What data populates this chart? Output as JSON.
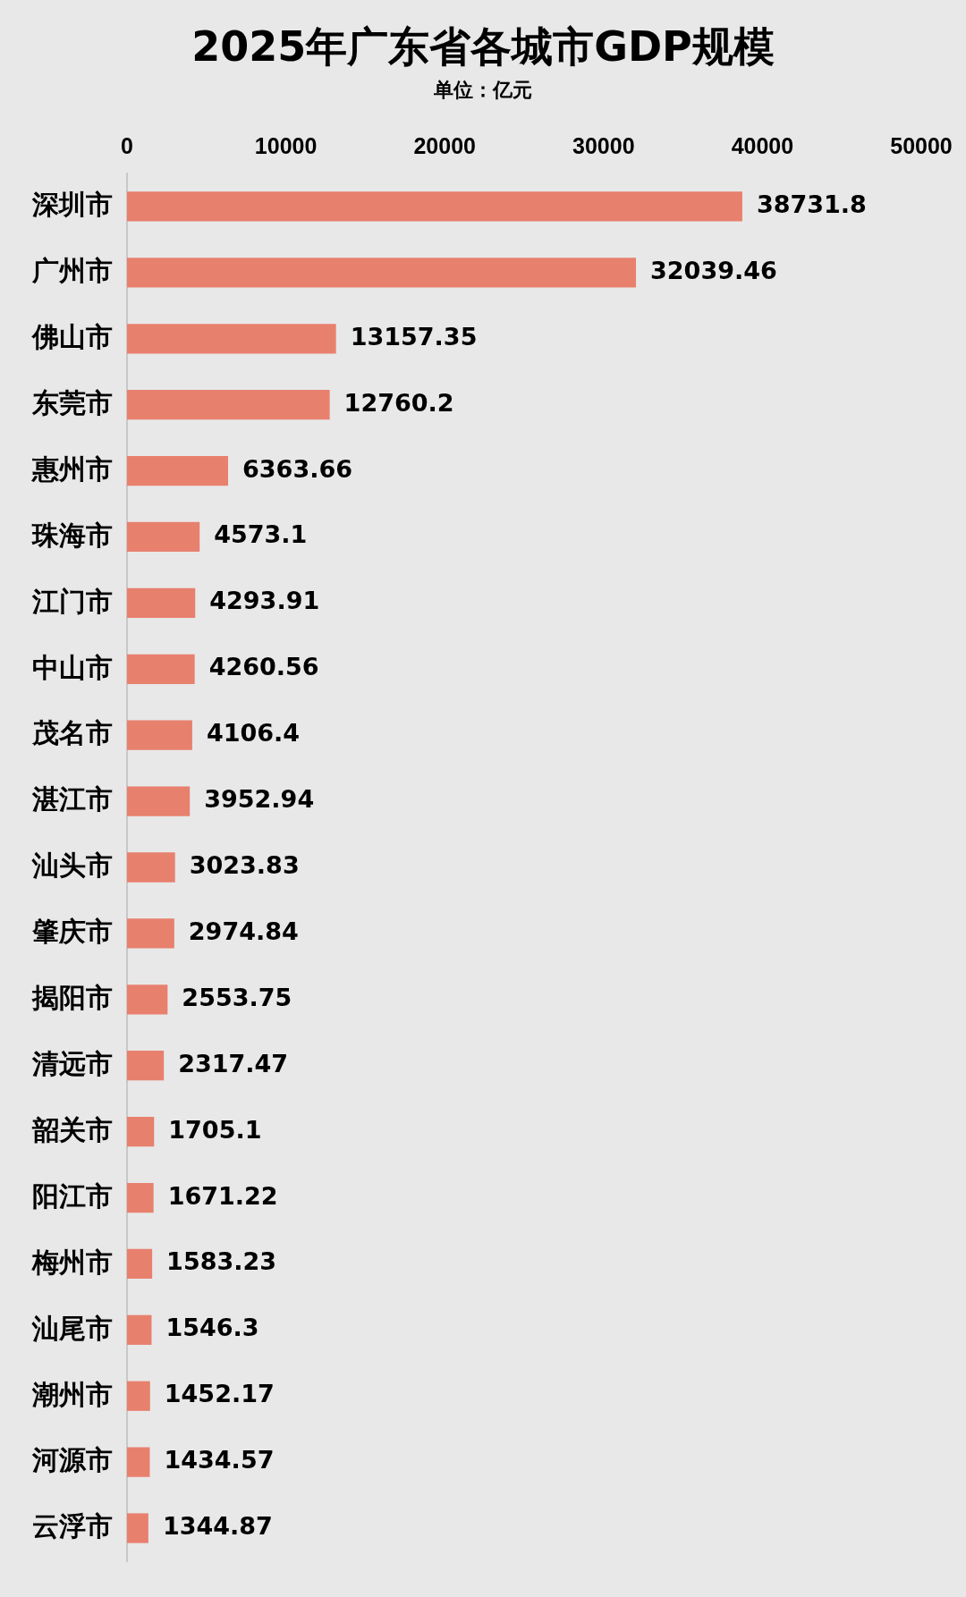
{
  "chart_data": {
    "type": "bar",
    "orientation": "horizontal",
    "title": "2025年广东省各城市GDP规模",
    "subtitle": "单位：亿元",
    "categories": [
      "深圳市",
      "广州市",
      "佛山市",
      "东莞市",
      "惠州市",
      "珠海市",
      "江门市",
      "中山市",
      "茂名市",
      "湛江市",
      "汕头市",
      "肇庆市",
      "揭阳市",
      "清远市",
      "韶关市",
      "阳江市",
      "梅州市",
      "汕尾市",
      "潮州市",
      "河源市",
      "云浮市"
    ],
    "values": [
      38731.8,
      32039.46,
      13157.35,
      12760.2,
      6363.66,
      4573.1,
      4293.91,
      4260.56,
      4106.4,
      3952.94,
      3023.83,
      2974.84,
      2553.75,
      2317.47,
      1705.1,
      1671.22,
      1583.23,
      1546.3,
      1452.17,
      1434.57,
      1344.87
    ],
    "color": "#e8806e",
    "xlim": [
      0,
      50000
    ],
    "xticks": [
      0,
      10000,
      20000,
      30000,
      40000,
      50000
    ],
    "data_labels": true,
    "grid": false,
    "legend": false
  }
}
